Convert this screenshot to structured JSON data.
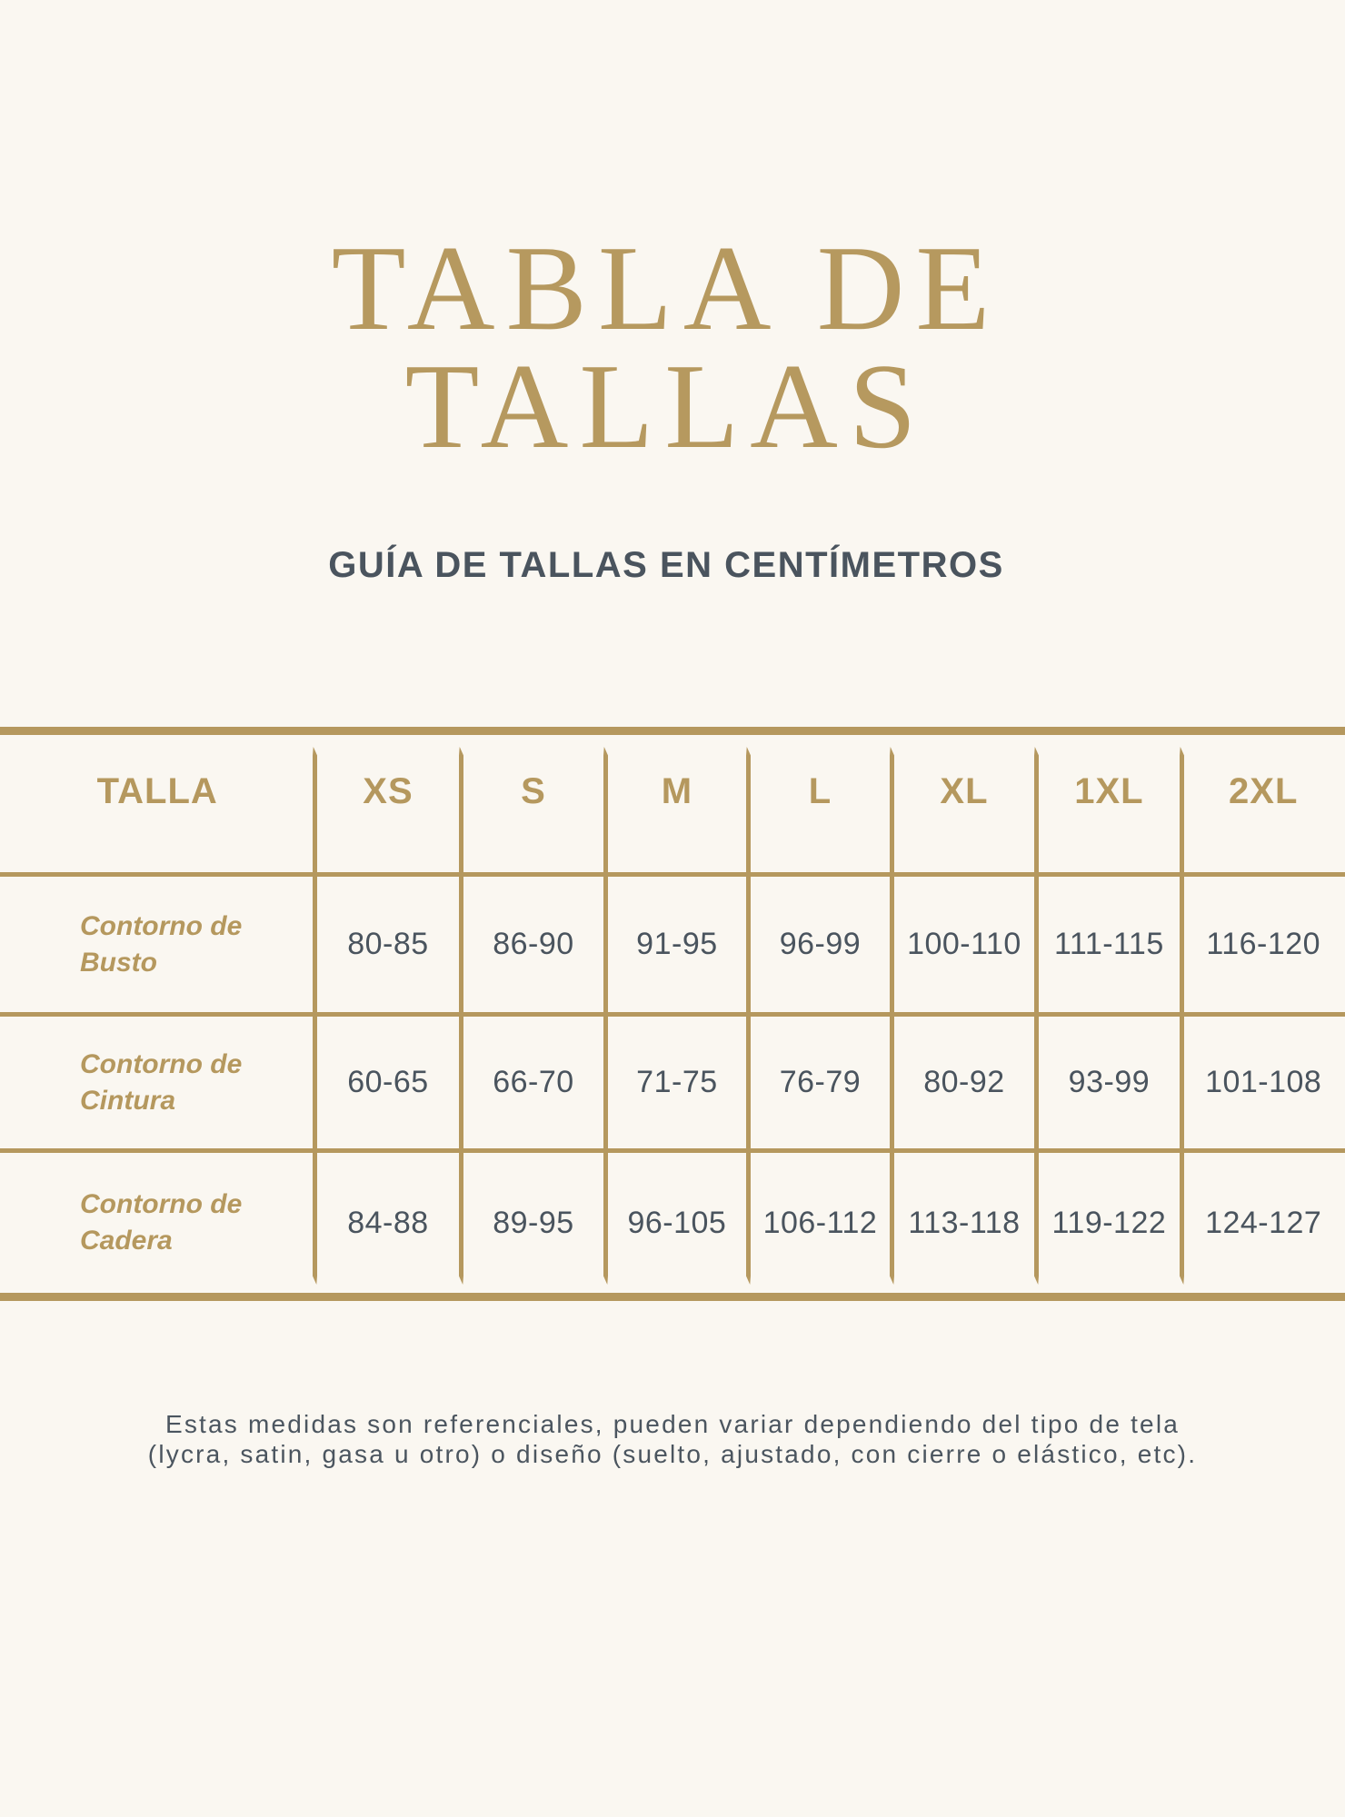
{
  "page": {
    "background_color": "#faf7f1",
    "accent_gold": "#b5985e",
    "text_slate": "#4a545e"
  },
  "title": {
    "line1": "TABLA DE",
    "line2": "TALLAS"
  },
  "subtitle": {
    "text": "GUÍA DE TALLAS EN CENTÍMETROS"
  },
  "table": {
    "headers": [
      "TALLA",
      "XS",
      "S",
      "M",
      "L",
      "XL",
      "1XL",
      "2XL"
    ],
    "rows": [
      {
        "label": "Contorno de Busto",
        "values": [
          "80-85",
          "86-90",
          "91-95",
          "96-99",
          "100-110",
          "111-115",
          "116-120"
        ]
      },
      {
        "label": "Contorno de Cintura",
        "values": [
          "60-65",
          "66-70",
          "71-75",
          "76-79",
          "80-92",
          "93-99",
          "101-108"
        ]
      },
      {
        "label": "Contorno de Cadera",
        "values": [
          "84-88",
          "89-95",
          "96-105",
          "106-112",
          "113-118",
          "119-122",
          "124-127"
        ]
      }
    ]
  },
  "footer": {
    "line1": "Estas medidas son referenciales, pueden variar dependiendo del tipo de tela",
    "line2": "(lycra, satin, gasa u otro) o diseño (suelto, ajustado, con cierre o elástico, etc)."
  }
}
